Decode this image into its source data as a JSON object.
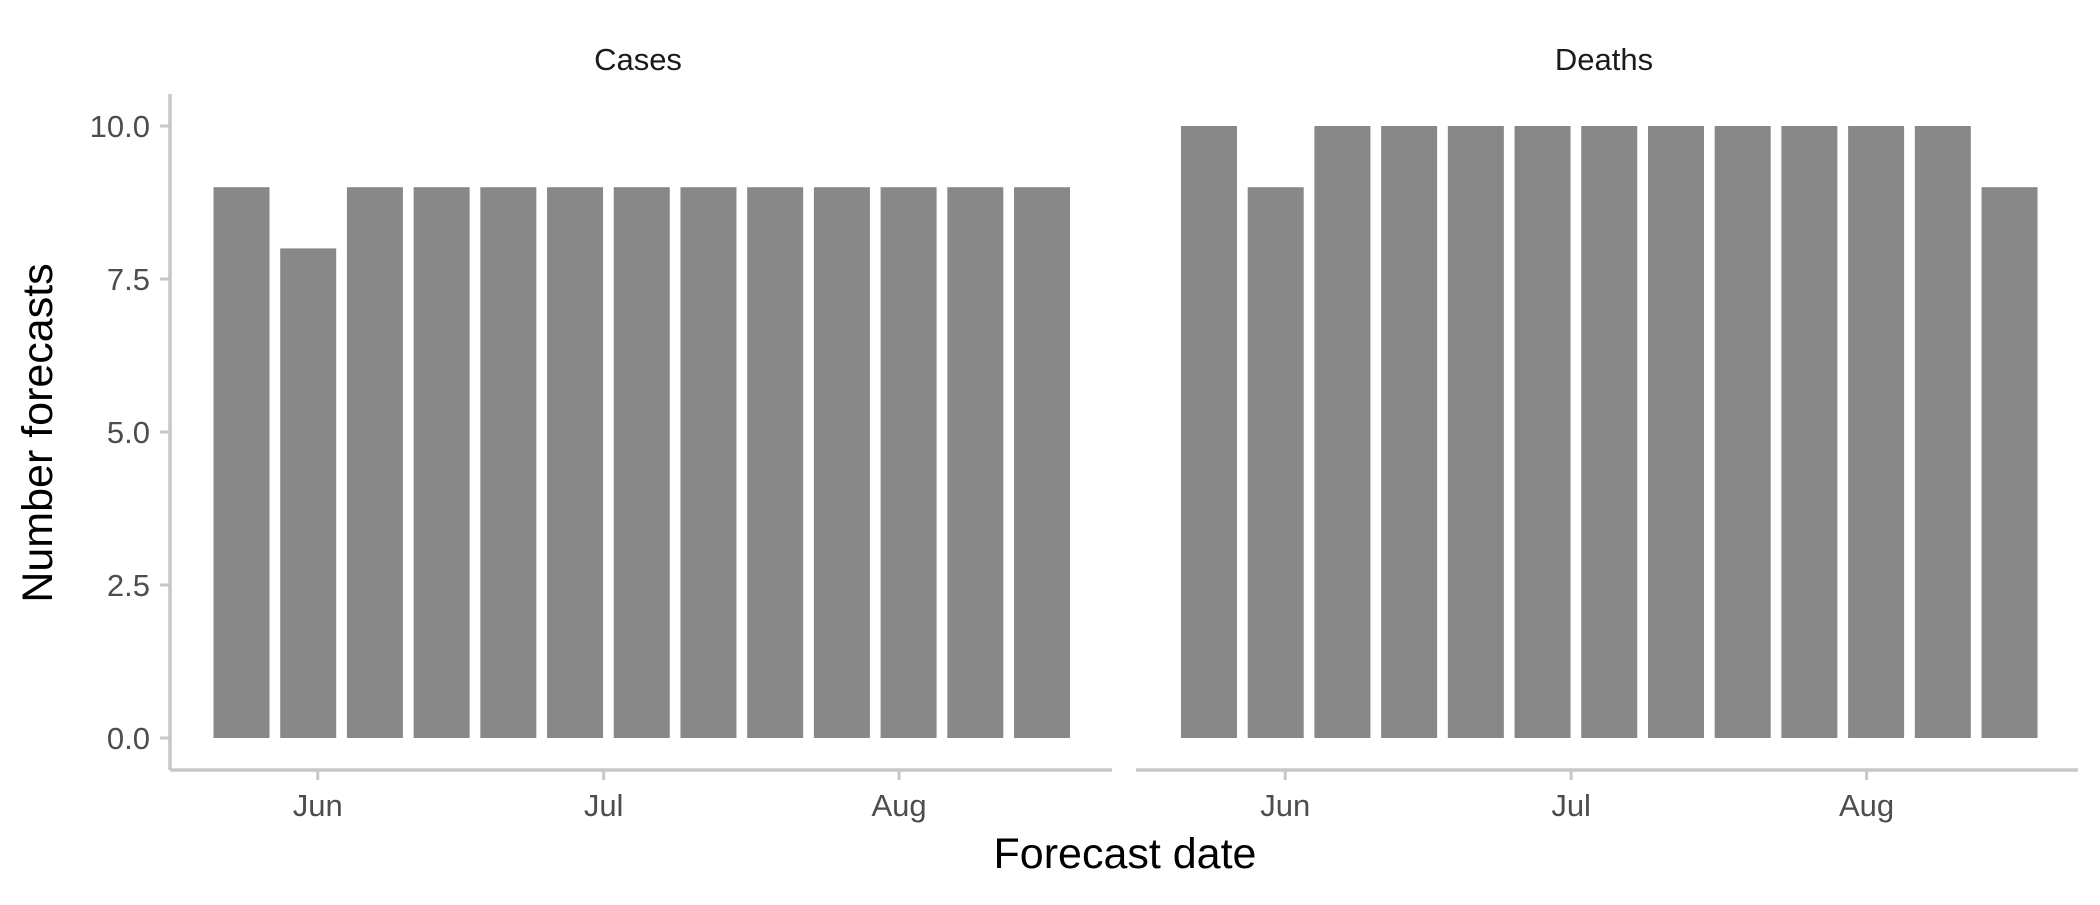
{
  "chart_data": {
    "type": "bar",
    "xlabel": "Forecast date",
    "ylabel": "Number forecasts",
    "ylim": [
      0,
      10.5
    ],
    "y_ticks": [
      "0.0",
      "2.5",
      "5.0",
      "7.5",
      "10.0"
    ],
    "x_ticks": [
      "Jun",
      "Jul",
      "Aug"
    ],
    "grid": false,
    "bar_color": "#888888",
    "panels": [
      {
        "title": "Cases",
        "x": [
          "2020-05-24",
          "2020-05-31",
          "2020-06-07",
          "2020-06-14",
          "2020-06-21",
          "2020-06-28",
          "2020-07-05",
          "2020-07-12",
          "2020-07-19",
          "2020-07-26",
          "2020-08-02",
          "2020-08-09",
          "2020-08-16"
        ],
        "values": [
          9,
          8,
          9,
          9,
          9,
          9,
          9,
          9,
          9,
          9,
          9,
          9,
          9
        ]
      },
      {
        "title": "Deaths",
        "x": [
          "2020-05-24",
          "2020-05-31",
          "2020-06-07",
          "2020-06-14",
          "2020-06-21",
          "2020-06-28",
          "2020-07-05",
          "2020-07-12",
          "2020-07-19",
          "2020-07-26",
          "2020-08-02",
          "2020-08-09",
          "2020-08-16"
        ],
        "values": [
          10,
          9,
          10,
          10,
          10,
          10,
          10,
          10,
          10,
          10,
          10,
          10,
          9
        ]
      }
    ]
  }
}
